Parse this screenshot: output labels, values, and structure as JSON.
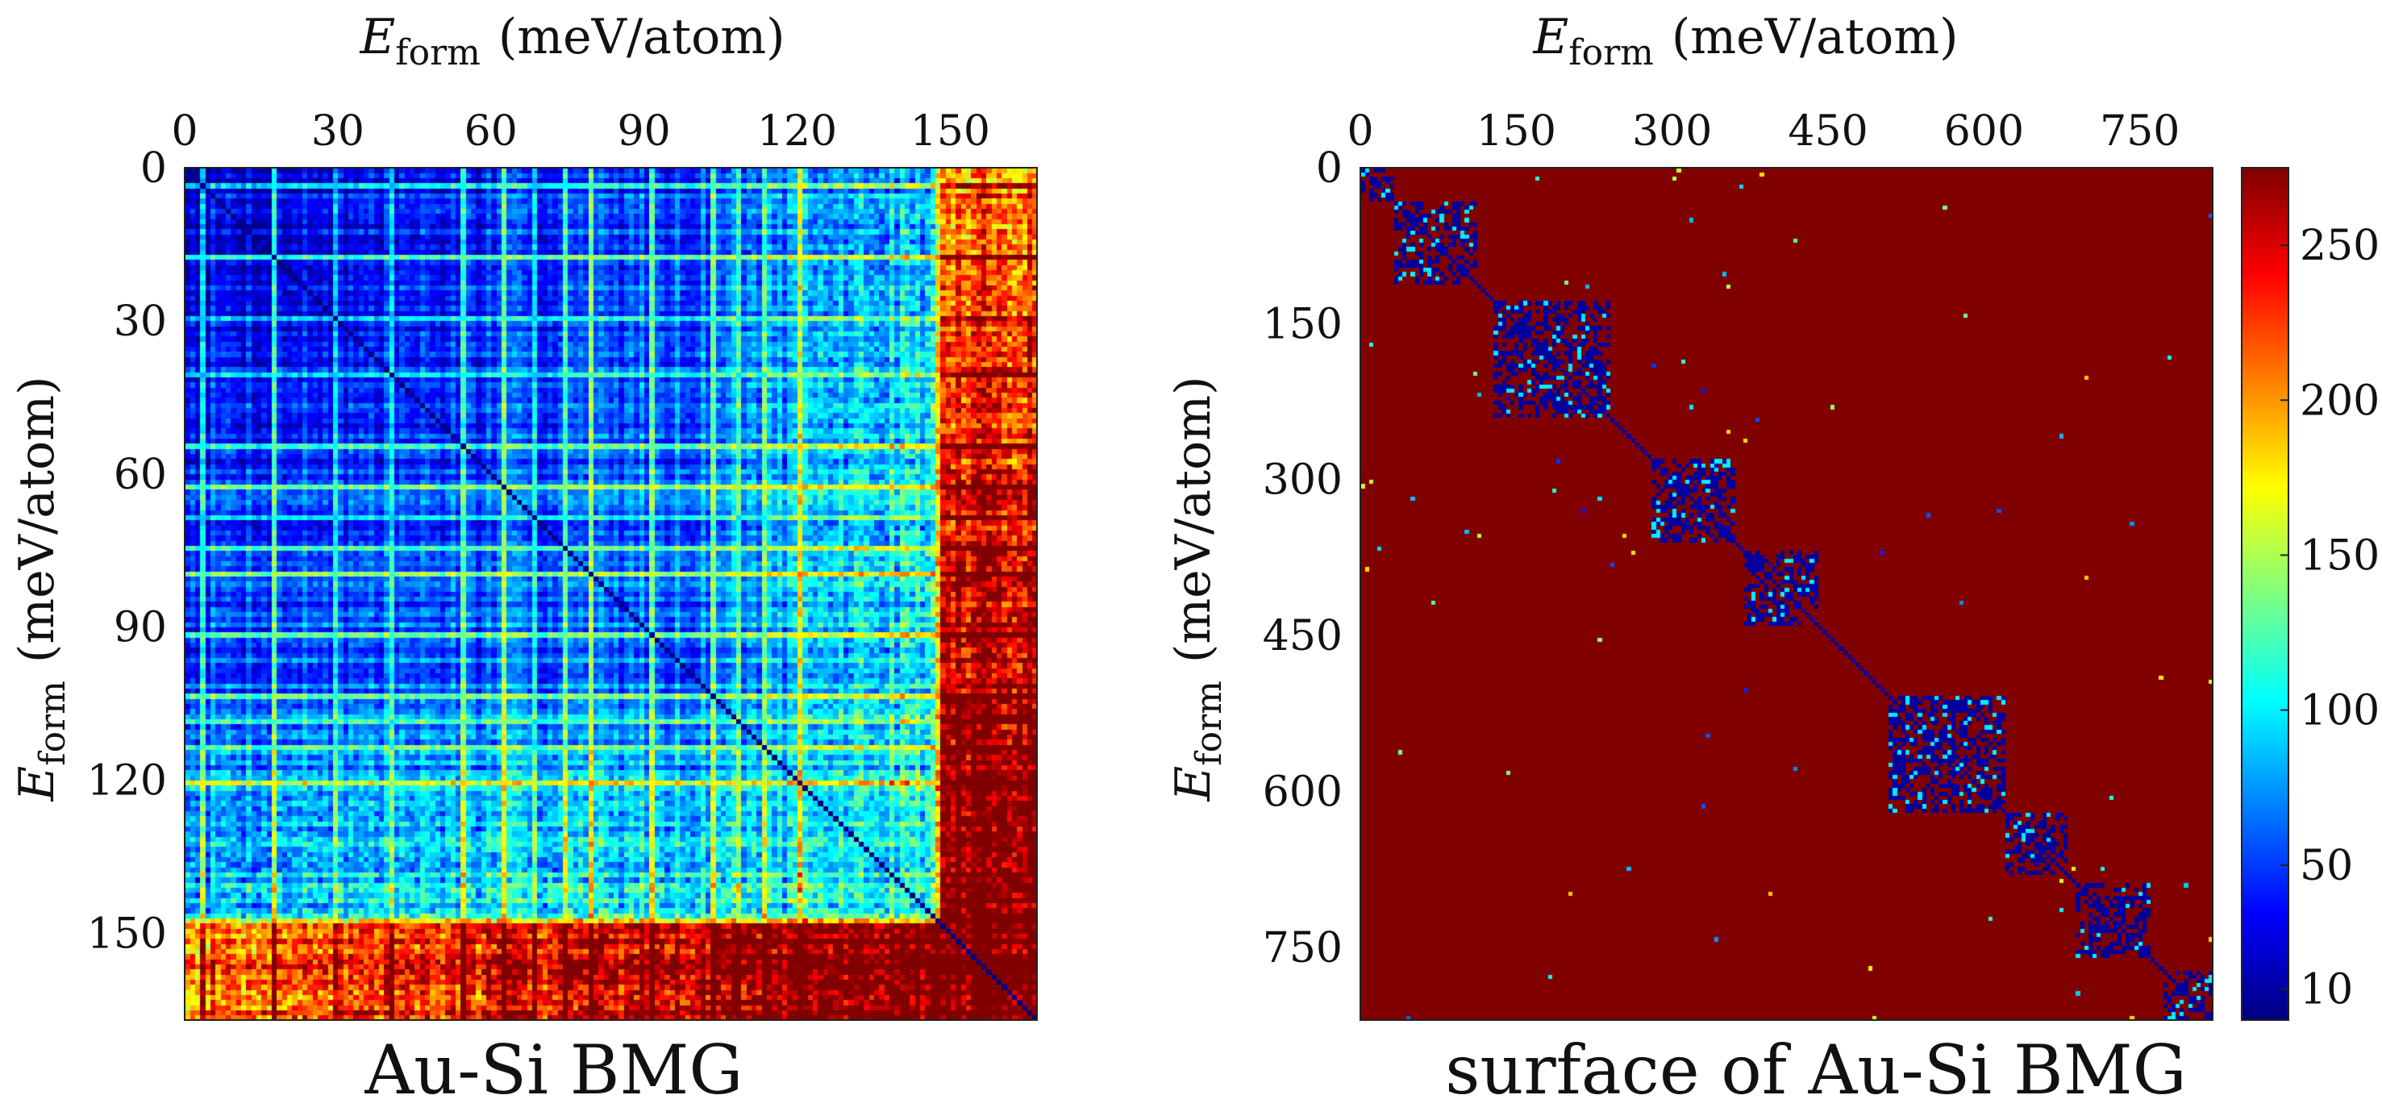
{
  "chart_data": [
    {
      "type": "heatmap",
      "caption": "Au-Si BMG",
      "x_axis": {
        "label_symbol": "E",
        "label_subscript": "form",
        "label_units": "(meV/atom)",
        "range": [
          0,
          167
        ],
        "ticks": [
          0,
          30,
          60,
          90,
          120,
          150
        ],
        "tick_labels": [
          "0",
          "30",
          "60",
          "90",
          "120",
          "150"
        ],
        "position": "top"
      },
      "y_axis": {
        "label_symbol": "E",
        "label_subscript": "form",
        "label_units": "(meV/atom)",
        "range": [
          0,
          167
        ],
        "ticks": [
          0,
          30,
          60,
          90,
          120,
          150
        ],
        "tick_labels": [
          "0",
          "30",
          "60",
          "90",
          "120",
          "150"
        ],
        "position": "left",
        "reversed": true
      },
      "matrix_size": 167,
      "colormap": "jet",
      "value_range": [
        0,
        275
      ],
      "pattern": "symmetric distance matrix; zero diagonal; mostly low (blue) values with cyan-yellow stripes; higher values toward high E_form; rows/cols around 148-167 saturated (dark red)"
    },
    {
      "type": "heatmap",
      "caption": "surface of Au-Si BMG",
      "x_axis": {
        "label_symbol": "E",
        "label_subscript": "form",
        "label_units": "(meV/atom)",
        "range": [
          0,
          820
        ],
        "ticks": [
          0,
          150,
          300,
          450,
          600,
          750
        ],
        "tick_labels": [
          "0",
          "150",
          "300",
          "450",
          "600",
          "750"
        ],
        "position": "top"
      },
      "y_axis": {
        "label_symbol": "E",
        "label_subscript": "form",
        "label_units": "(meV/atom)",
        "range": [
          0,
          820
        ],
        "ticks": [
          0,
          150,
          300,
          450,
          600,
          750
        ],
        "tick_labels": [
          "0",
          "150",
          "300",
          "450",
          "600",
          "750"
        ],
        "position": "left",
        "reversed": true
      },
      "matrix_size": 820,
      "colormap": "jet",
      "value_range": [
        0,
        275
      ],
      "background_value": 275,
      "low_value_blocks": [
        {
          "start": 0,
          "end": 30
        },
        {
          "start": 35,
          "end": 110
        },
        {
          "start": 130,
          "end": 240
        },
        {
          "start": 280,
          "end": 360
        },
        {
          "start": 370,
          "end": 440
        },
        {
          "start": 510,
          "end": 620
        },
        {
          "start": 620,
          "end": 680
        },
        {
          "start": 690,
          "end": 760
        },
        {
          "start": 775,
          "end": 820
        }
      ],
      "pattern": "mostly saturated (dark red) with block-diagonal blue clusters along the diagonal and sparse off-diagonal cyan/yellow points"
    }
  ],
  "colorbar": {
    "ticks": [
      10,
      50,
      100,
      150,
      200,
      250
    ],
    "tick_labels": [
      "10",
      "50",
      "100",
      "150",
      "200",
      "250"
    ],
    "range": [
      0,
      275
    ],
    "colormap": "jet"
  }
}
